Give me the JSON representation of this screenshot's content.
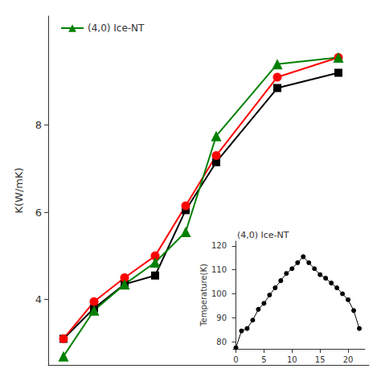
{
  "chart_data": [
    {
      "type": "line",
      "ylabel": "K(W/mK)",
      "x": [
        2,
        4,
        6,
        8,
        10,
        12,
        16,
        20
      ],
      "series": [
        {
          "color": "black",
          "marker": "square",
          "values": [
            3.1,
            3.8,
            4.35,
            4.55,
            6.05,
            7.15,
            8.85,
            9.2
          ]
        },
        {
          "color": "red",
          "marker": "circle",
          "values": [
            3.1,
            3.95,
            4.5,
            5.0,
            6.15,
            7.3,
            9.1,
            9.55
          ]
        },
        {
          "name": "(4,0) Ice-NT",
          "color": "green",
          "marker": "triangle",
          "values": [
            2.7,
            3.75,
            4.35,
            4.85,
            5.55,
            7.75,
            9.4,
            9.55
          ]
        }
      ],
      "xlim": [
        1,
        22
      ],
      "xticks": [],
      "ylim": [
        2.5,
        10.5
      ],
      "yticks": [
        4,
        6,
        8
      ],
      "legend": "upper left",
      "grid": false,
      "tick_labels": "y"
    },
    {
      "type": "line",
      "title": "(4,0) Ice-NT",
      "ylabel": "Temperature(K)",
      "x": [
        0,
        1,
        2,
        3,
        4,
        5,
        6,
        7,
        8,
        9,
        10,
        11,
        12,
        13,
        14,
        15,
        16,
        17,
        18,
        19,
        20,
        21,
        22
      ],
      "series": [
        {
          "color": "black",
          "marker": "circle",
          "values": [
            77.5,
            84.5,
            85.5,
            89.0,
            93.5,
            96.0,
            99.5,
            102.5,
            105.5,
            108.5,
            110.5,
            113.0,
            115.5,
            113.0,
            110.5,
            108.0,
            106.5,
            104.5,
            102.5,
            100.0,
            97.5,
            93.0,
            85.5
          ]
        }
      ],
      "xlim": [
        -0.5,
        23
      ],
      "xticks": [
        0,
        5,
        10,
        15,
        20
      ],
      "ylim": [
        77,
        122
      ],
      "yticks": [
        80,
        90,
        100,
        110,
        120
      ],
      "grid": false
    }
  ]
}
